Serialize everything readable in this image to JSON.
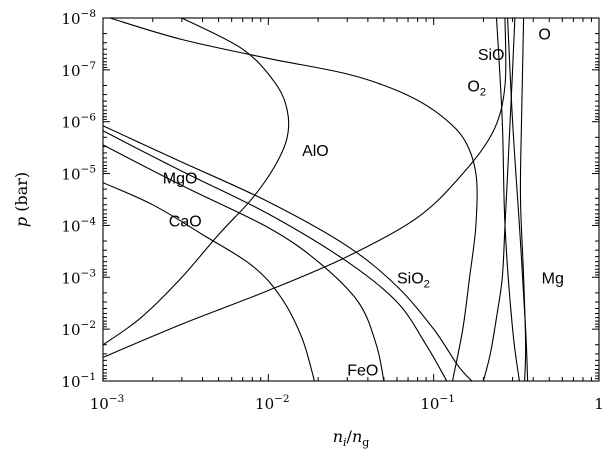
{
  "chart_data": {
    "type": "line",
    "xlabel": "n_i/n_g",
    "ylabel": "p (bar)",
    "x_scale": "log",
    "y_scale": "log",
    "y_inverted": true,
    "xlim": [
      0.001,
      1
    ],
    "ylim": [
      1e-08,
      0.1
    ],
    "x_ticks": [
      {
        "base": "10",
        "exp": "−3"
      },
      {
        "base": "10",
        "exp": "−2"
      },
      {
        "base": "10",
        "exp": "−1"
      },
      {
        "base": "1",
        "exp": ""
      }
    ],
    "y_ticks": [
      {
        "base": "10",
        "exp": "−8"
      },
      {
        "base": "10",
        "exp": "−7"
      },
      {
        "base": "10",
        "exp": "−6"
      },
      {
        "base": "10",
        "exp": "−5"
      },
      {
        "base": "10",
        "exp": "−4"
      },
      {
        "base": "10",
        "exp": "−3"
      },
      {
        "base": "10",
        "exp": "−2"
      },
      {
        "base": "10",
        "exp": "−1"
      }
    ],
    "grid": false,
    "legend": "none",
    "series": [
      {
        "name": "O2",
        "label": "O",
        "label_sub": "2",
        "label_at": [
          0.16,
          2e-07
        ],
        "points": [
          [
            0.0011,
            1e-08
          ],
          [
            0.003,
            2.6e-08
          ],
          [
            0.01,
            6e-08
          ],
          [
            0.03,
            1.2e-07
          ],
          [
            0.06,
            2.5e-07
          ],
          [
            0.1,
            6e-07
          ],
          [
            0.15,
            2e-06
          ],
          [
            0.18,
            1e-05
          ],
          [
            0.18,
            0.0001
          ],
          [
            0.165,
            0.001
          ],
          [
            0.15,
            0.01
          ],
          [
            0.13,
            0.1
          ]
        ]
      },
      {
        "name": "AlO",
        "label": "AlO",
        "label_sub": "",
        "label_at": [
          0.016,
          3.5e-06
        ],
        "points": [
          [
            0.003,
            1e-08
          ],
          [
            0.007,
            4e-08
          ],
          [
            0.011,
            1.8e-07
          ],
          [
            0.013,
            6e-07
          ],
          [
            0.013,
            2e-06
          ],
          [
            0.011,
            7e-06
          ],
          [
            0.008,
            3e-05
          ],
          [
            0.005,
            0.00015
          ],
          [
            0.003,
            0.001
          ],
          [
            0.0017,
            0.006
          ],
          [
            0.001,
            0.02
          ]
        ]
      },
      {
        "name": "SiO",
        "label": "SiO",
        "label_sub": "",
        "label_at": [
          0.185,
          5e-08
        ],
        "points": [
          [
            0.001,
            0.035
          ],
          [
            0.003,
            0.008
          ],
          [
            0.01,
            0.0018
          ],
          [
            0.03,
            0.0004
          ],
          [
            0.08,
            7e-05
          ],
          [
            0.15,
            1e-05
          ],
          [
            0.23,
            1.5e-06
          ],
          [
            0.27,
            2e-07
          ],
          [
            0.27,
            1e-08
          ]
        ]
      },
      {
        "name": "O",
        "label": "O",
        "label_sub": "",
        "label_at": [
          0.43,
          2e-08
        ],
        "points": [
          [
            0.2,
            0.1
          ],
          [
            0.22,
            0.03
          ],
          [
            0.24,
            0.006
          ],
          [
            0.26,
            0.001
          ],
          [
            0.27,
            0.0001
          ],
          [
            0.28,
            1e-05
          ],
          [
            0.29,
            1e-06
          ],
          [
            0.3,
            1e-07
          ],
          [
            0.31,
            1e-08
          ]
        ]
      },
      {
        "name": "Mg",
        "label": "Mg",
        "label_sub": "",
        "label_at": [
          0.45,
          0.001
        ],
        "points": [
          [
            0.24,
            1e-08
          ],
          [
            0.26,
            1e-06
          ],
          [
            0.27,
            0.0001
          ],
          [
            0.3,
            0.01
          ],
          [
            0.33,
            0.1
          ]
        ]
      },
      {
        "name": "Mg2",
        "label": "",
        "label_sub": "",
        "label_at": [
          0.3,
          1e-08
        ],
        "points": [
          [
            0.28,
            1e-08
          ],
          [
            0.3,
            1e-06
          ],
          [
            0.33,
            0.0001
          ],
          [
            0.36,
            0.01
          ],
          [
            0.37,
            0.1
          ]
        ]
      },
      {
        "name": "Mg3",
        "label": "",
        "label_sub": "",
        "label_at": [
          0.34,
          1e-08
        ],
        "points": [
          [
            0.35,
            1e-08
          ],
          [
            0.34,
            1e-06
          ],
          [
            0.335,
            3e-05
          ],
          [
            0.35,
            0.001
          ],
          [
            0.36,
            0.02
          ],
          [
            0.355,
            0.1
          ]
        ]
      },
      {
        "name": "SiO2",
        "label": "SiO",
        "label_sub": "2",
        "label_at": [
          0.06,
          0.001
        ],
        "points": [
          [
            0.001,
            1.2e-06
          ],
          [
            0.003,
            6e-06
          ],
          [
            0.01,
            3.5e-05
          ],
          [
            0.03,
            0.00025
          ],
          [
            0.06,
            0.0015
          ],
          [
            0.1,
            0.01
          ],
          [
            0.14,
            0.05
          ],
          [
            0.17,
            0.1
          ]
        ]
      },
      {
        "name": "MgO",
        "label": "MgO",
        "label_sub": "",
        "label_at": [
          0.0023,
          1.2e-05
        ],
        "points": [
          [
            0.001,
            1.5e-06
          ],
          [
            0.003,
            9e-06
          ],
          [
            0.01,
            6e-05
          ],
          [
            0.03,
            0.0005
          ],
          [
            0.06,
            0.003
          ],
          [
            0.09,
            0.02
          ],
          [
            0.12,
            0.1
          ]
        ]
      },
      {
        "name": "FeO",
        "label": "FeO",
        "label_sub": "",
        "label_at": [
          0.03,
          0.06
        ],
        "points": [
          [
            0.001,
            2.8e-06
          ],
          [
            0.003,
            1.7e-05
          ],
          [
            0.01,
            0.00011
          ],
          [
            0.02,
            0.0005
          ],
          [
            0.035,
            0.003
          ],
          [
            0.045,
            0.02
          ],
          [
            0.05,
            0.1
          ]
        ]
      },
      {
        "name": "CaO",
        "label": "CaO",
        "label_sub": "",
        "label_at": [
          0.0025,
          8e-05
        ],
        "points": [
          [
            0.001,
            1.5e-05
          ],
          [
            0.002,
            4e-05
          ],
          [
            0.004,
            0.00015
          ],
          [
            0.008,
            0.0006
          ],
          [
            0.012,
            0.0025
          ],
          [
            0.016,
            0.015
          ],
          [
            0.019,
            0.1
          ]
        ]
      }
    ]
  }
}
